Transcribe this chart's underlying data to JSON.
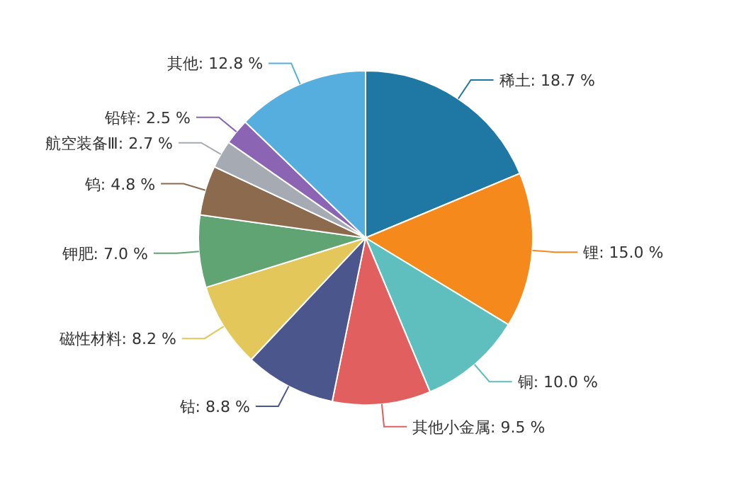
{
  "chart_data": {
    "type": "pie",
    "categories": [
      "稀土",
      "锂",
      "铜",
      "其他小金属",
      "钴",
      "磁性材料",
      "钾肥",
      "钨",
      "航空装备Ⅲ",
      "铅锌",
      "其他"
    ],
    "values": [
      18.7,
      15.0,
      10.0,
      9.5,
      8.8,
      8.2,
      7.0,
      4.8,
      2.7,
      2.5,
      12.8
    ],
    "value_labels": [
      "18.7 %",
      "15.0 %",
      "10.0 %",
      "9.5 %",
      "8.8 %",
      "8.2 %",
      "7.0 %",
      "4.8 %",
      "2.7 %",
      "2.5 %",
      "12.8 %"
    ],
    "colors": [
      "#1f77a4",
      "#f5891b",
      "#5fbfbf",
      "#e15f5f",
      "#4a568c",
      "#e3c75a",
      "#5fa472",
      "#8c6a4e",
      "#a6abb3",
      "#8b64b3",
      "#56aede"
    ]
  }
}
